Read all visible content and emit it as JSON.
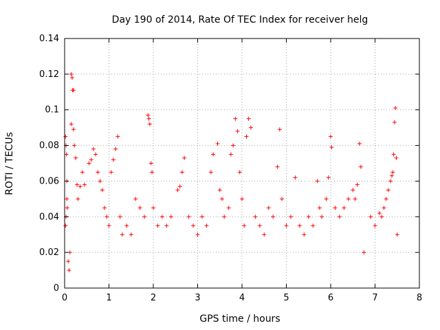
{
  "chart_data": {
    "type": "scatter",
    "title": "Day 190 of 2014, Rate Of TEC Index for receiver helg",
    "xlabel": "GPS time / hours",
    "ylabel": "ROTI / TECUs",
    "xlim": [
      0,
      8
    ],
    "ylim": [
      0,
      0.14
    ],
    "xticks": [
      "0",
      "1",
      "2",
      "3",
      "4",
      "5",
      "6",
      "7",
      "8"
    ],
    "yticks": [
      "0",
      "0.02",
      "0.04",
      "0.06",
      "0.08",
      "0.1",
      "0.12",
      "0.14"
    ],
    "grid": true,
    "marker": "+",
    "color": "#ff0000",
    "series": [
      {
        "name": "ROTI",
        "points": [
          [
            0.02,
            0.085
          ],
          [
            0.03,
            0.08
          ],
          [
            0.04,
            0.075
          ],
          [
            0.05,
            0.06
          ],
          [
            0.05,
            0.05
          ],
          [
            0.03,
            0.04
          ],
          [
            0.02,
            0.035
          ],
          [
            0.06,
            0.045
          ],
          [
            0.08,
            0.015
          ],
          [
            0.1,
            0.01
          ],
          [
            0.12,
            0.02
          ],
          [
            0.15,
            0.12
          ],
          [
            0.17,
            0.118
          ],
          [
            0.18,
            0.111
          ],
          [
            0.2,
            0.111
          ],
          [
            0.15,
            0.092
          ],
          [
            0.2,
            0.089
          ],
          [
            0.22,
            0.08
          ],
          [
            0.25,
            0.073
          ],
          [
            0.28,
            0.058
          ],
          [
            0.3,
            0.05
          ],
          [
            0.35,
            0.057
          ],
          [
            0.4,
            0.065
          ],
          [
            0.45,
            0.058
          ],
          [
            0.55,
            0.07
          ],
          [
            0.6,
            0.072
          ],
          [
            0.65,
            0.078
          ],
          [
            0.7,
            0.075
          ],
          [
            0.75,
            0.065
          ],
          [
            0.8,
            0.06
          ],
          [
            0.85,
            0.055
          ],
          [
            0.9,
            0.045
          ],
          [
            0.95,
            0.04
          ],
          [
            1.0,
            0.035
          ],
          [
            1.05,
            0.065
          ],
          [
            1.1,
            0.072
          ],
          [
            1.15,
            0.078
          ],
          [
            1.2,
            0.085
          ],
          [
            1.25,
            0.04
          ],
          [
            1.3,
            0.03
          ],
          [
            1.4,
            0.035
          ],
          [
            1.5,
            0.03
          ],
          [
            1.6,
            0.05
          ],
          [
            1.7,
            0.045
          ],
          [
            1.8,
            0.04
          ],
          [
            1.88,
            0.097
          ],
          [
            1.9,
            0.095
          ],
          [
            1.92,
            0.092
          ],
          [
            1.95,
            0.07
          ],
          [
            1.97,
            0.065
          ],
          [
            2.0,
            0.045
          ],
          [
            2.1,
            0.035
          ],
          [
            2.2,
            0.04
          ],
          [
            2.3,
            0.035
          ],
          [
            2.4,
            0.04
          ],
          [
            2.55,
            0.055
          ],
          [
            2.6,
            0.057
          ],
          [
            2.65,
            0.065
          ],
          [
            2.7,
            0.073
          ],
          [
            2.8,
            0.04
          ],
          [
            2.9,
            0.035
          ],
          [
            3.0,
            0.03
          ],
          [
            3.1,
            0.04
          ],
          [
            3.2,
            0.035
          ],
          [
            3.3,
            0.065
          ],
          [
            3.35,
            0.075
          ],
          [
            3.45,
            0.081
          ],
          [
            3.5,
            0.055
          ],
          [
            3.55,
            0.05
          ],
          [
            3.6,
            0.04
          ],
          [
            3.7,
            0.045
          ],
          [
            3.75,
            0.075
          ],
          [
            3.8,
            0.08
          ],
          [
            3.85,
            0.095
          ],
          [
            3.9,
            0.088
          ],
          [
            3.95,
            0.065
          ],
          [
            4.0,
            0.05
          ],
          [
            4.05,
            0.035
          ],
          [
            4.1,
            0.085
          ],
          [
            4.15,
            0.095
          ],
          [
            4.2,
            0.09
          ],
          [
            4.3,
            0.04
          ],
          [
            4.4,
            0.035
          ],
          [
            4.5,
            0.03
          ],
          [
            4.6,
            0.045
          ],
          [
            4.7,
            0.04
          ],
          [
            4.8,
            0.068
          ],
          [
            4.85,
            0.089
          ],
          [
            4.9,
            0.05
          ],
          [
            5.0,
            0.035
          ],
          [
            5.1,
            0.04
          ],
          [
            5.2,
            0.062
          ],
          [
            5.3,
            0.035
          ],
          [
            5.4,
            0.03
          ],
          [
            5.5,
            0.04
          ],
          [
            5.6,
            0.035
          ],
          [
            5.7,
            0.06
          ],
          [
            5.75,
            0.045
          ],
          [
            5.8,
            0.04
          ],
          [
            5.9,
            0.05
          ],
          [
            5.95,
            0.062
          ],
          [
            6.0,
            0.085
          ],
          [
            6.02,
            0.079
          ],
          [
            6.1,
            0.045
          ],
          [
            6.2,
            0.04
          ],
          [
            6.3,
            0.045
          ],
          [
            6.4,
            0.05
          ],
          [
            6.5,
            0.055
          ],
          [
            6.55,
            0.05
          ],
          [
            6.6,
            0.058
          ],
          [
            6.65,
            0.081
          ],
          [
            6.68,
            0.068
          ],
          [
            6.75,
            0.02
          ],
          [
            6.9,
            0.04
          ],
          [
            7.0,
            0.035
          ],
          [
            7.1,
            0.042
          ],
          [
            7.15,
            0.04
          ],
          [
            7.2,
            0.045
          ],
          [
            7.25,
            0.05
          ],
          [
            7.3,
            0.055
          ],
          [
            7.35,
            0.06
          ],
          [
            7.38,
            0.063
          ],
          [
            7.4,
            0.065
          ],
          [
            7.42,
            0.075
          ],
          [
            7.44,
            0.093
          ],
          [
            7.46,
            0.101
          ],
          [
            7.48,
            0.073
          ],
          [
            7.5,
            0.03
          ]
        ]
      }
    ]
  }
}
